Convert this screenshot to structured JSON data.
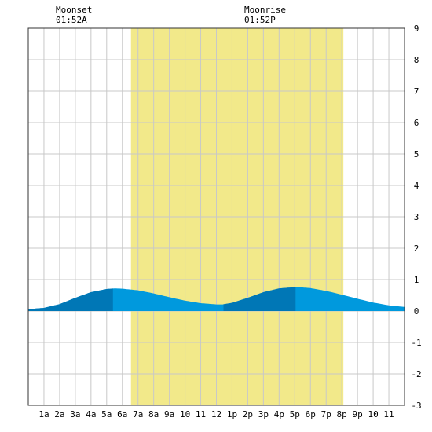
{
  "moon_events": [
    {
      "title": "Moonset",
      "time": "01:52A"
    },
    {
      "title": "Moonrise",
      "time": "01:52P"
    }
  ],
  "chart_data": {
    "type": "area",
    "x_unit": "hour of day",
    "x_tick_labels": [
      "1a",
      "2a",
      "3a",
      "4a",
      "5a",
      "6a",
      "7a",
      "8a",
      "9a",
      "10",
      "11",
      "12",
      "1p",
      "2p",
      "3p",
      "4p",
      "5p",
      "6p",
      "7p",
      "8p",
      "9p",
      "10",
      "11"
    ],
    "x_tick_values": [
      1,
      2,
      3,
      4,
      5,
      6,
      7,
      8,
      9,
      10,
      11,
      12,
      13,
      14,
      15,
      16,
      17,
      18,
      19,
      20,
      21,
      22,
      23
    ],
    "xlim": [
      0,
      24
    ],
    "ylim": [
      -3,
      9
    ],
    "y_tick_labels": [
      "-3",
      "-2",
      "-1",
      "0",
      "1",
      "2",
      "3",
      "4",
      "5",
      "6",
      "7",
      "8",
      "9"
    ],
    "y_tick_values": [
      -3,
      -2,
      -1,
      0,
      1,
      2,
      3,
      4,
      5,
      6,
      7,
      8,
      9
    ],
    "grid": true,
    "daylight": {
      "start": 6.55,
      "end": 20.1
    },
    "series": [
      {
        "x": [
          0,
          1,
          2,
          3,
          4,
          5,
          5.5,
          6,
          7,
          8,
          9,
          10,
          11,
          12,
          12.4,
          13,
          14,
          15,
          16,
          17,
          17.2,
          18,
          19,
          20,
          21,
          22,
          23,
          24
        ],
        "values": [
          0.06,
          0.1,
          0.22,
          0.42,
          0.6,
          0.7,
          0.72,
          0.71,
          0.66,
          0.56,
          0.44,
          0.33,
          0.25,
          0.21,
          0.21,
          0.26,
          0.42,
          0.6,
          0.72,
          0.76,
          0.76,
          0.73,
          0.64,
          0.52,
          0.39,
          0.27,
          0.18,
          0.13
        ]
      }
    ],
    "dark_bands": [
      [
        0,
        5.4
      ],
      [
        12.45,
        17.05
      ]
    ],
    "colors": {
      "daylight": "#f2e98a",
      "tide_light": "#0099dd",
      "tide_dark": "#0077b6",
      "grid": "#c8c8c8",
      "frame": "#333333",
      "background": "#ffffff"
    }
  }
}
